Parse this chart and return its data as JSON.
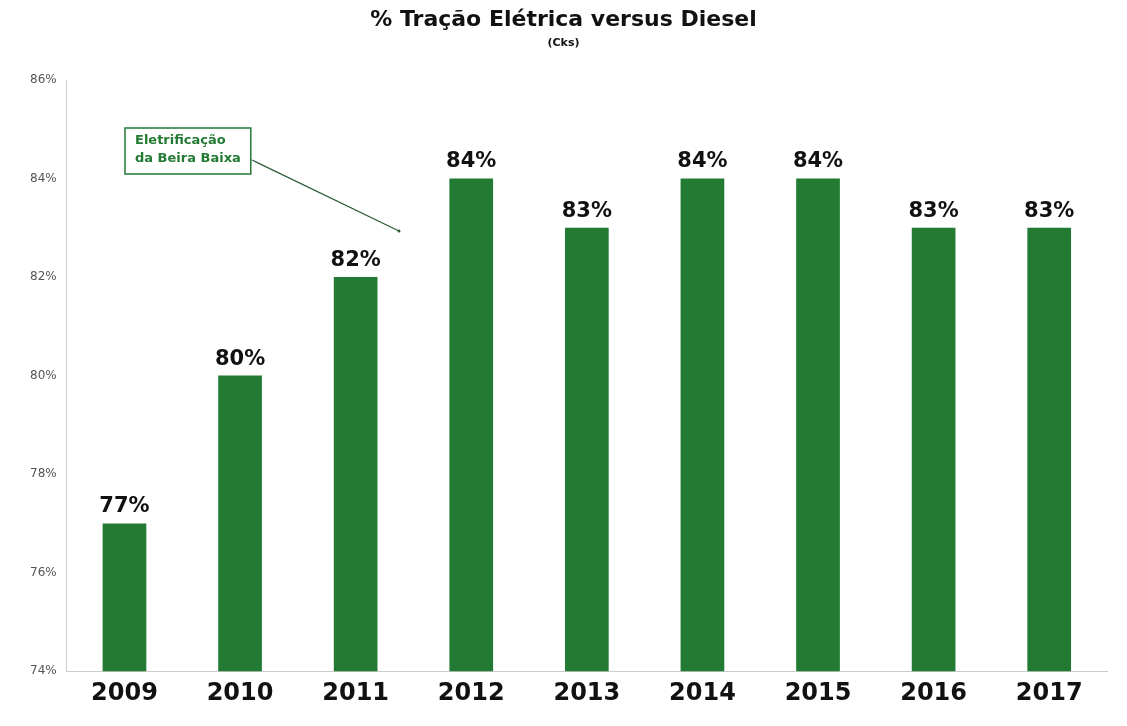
{
  "chart_data": {
    "type": "bar",
    "title": "% Tração Elétrica versus Diesel",
    "subtitle": "(Cks)",
    "categories": [
      "2009",
      "2010",
      "2011",
      "2012",
      "2013",
      "2014",
      "2015",
      "2016",
      "2017"
    ],
    "values": [
      77,
      80,
      82,
      84,
      83,
      84,
      84,
      83,
      83
    ],
    "value_labels": [
      "77%",
      "80%",
      "82%",
      "84%",
      "83%",
      "84%",
      "84%",
      "83%",
      "83%"
    ],
    "color": "#227a33",
    "ylim": [
      74,
      86
    ],
    "yticks": [
      {
        "value": 74,
        "label": "74%"
      },
      {
        "value": 76,
        "label": "76%"
      },
      {
        "value": 78,
        "label": "78%"
      },
      {
        "value": 80,
        "label": "80%"
      },
      {
        "value": 82,
        "label": "82%"
      },
      {
        "value": 84,
        "label": "84%"
      },
      {
        "value": 86,
        "label": "86%"
      }
    ],
    "annotations": [
      "Eletrificação\nda Beira Baixa"
    ],
    "grid": false,
    "legend": false
  }
}
